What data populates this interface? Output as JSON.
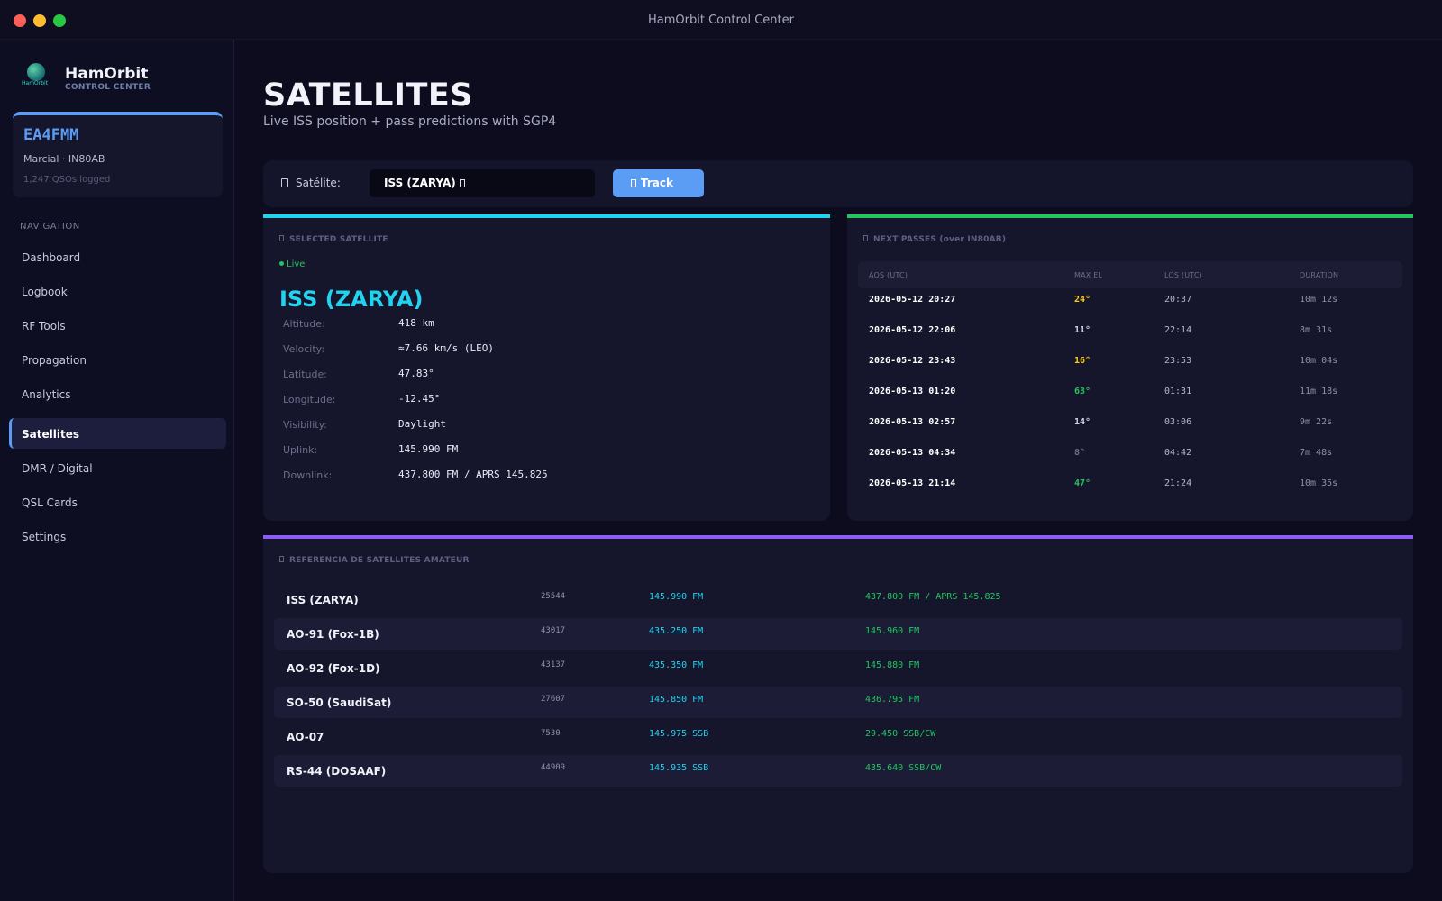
{
  "window": {
    "title": "HamOrbit Control Center"
  },
  "brand": {
    "name": "HamOrbit",
    "subtitle": "CONTROL CENTER",
    "logo_text": "HamOrbit"
  },
  "user": {
    "callsign": "EA4FMM",
    "name_locator": "Marcial · IN80AB",
    "qsos": "1,247 QSOs logged"
  },
  "nav": {
    "heading": "NAVIGATION",
    "items": [
      {
        "label": "Dashboard",
        "active": false
      },
      {
        "label": "Logbook",
        "active": false
      },
      {
        "label": "RF Tools",
        "active": false
      },
      {
        "label": "Propagation",
        "active": false
      },
      {
        "label": "Analytics",
        "active": false
      },
      {
        "label": "Satellites",
        "active": true
      },
      {
        "label": "DMR / Digital",
        "active": false
      },
      {
        "label": "QSL Cards",
        "active": false
      },
      {
        "label": "Settings",
        "active": false
      }
    ]
  },
  "page": {
    "title": "SATELLITES",
    "subtitle": "Live ISS position + pass predictions with SGP4"
  },
  "tracker": {
    "label": "Satélite:",
    "selected": "ISS (ZARYA)",
    "button": "Track"
  },
  "selected_satellite": {
    "heading": "SELECTED SATELLITE",
    "status": "Live",
    "name": "ISS (ZARYA)",
    "details": [
      {
        "label": "Altitude:",
        "value": "418 km"
      },
      {
        "label": "Velocity:",
        "value": "≈7.66 km/s (LEO)"
      },
      {
        "label": "Latitude:",
        "value": "47.83°"
      },
      {
        "label": "Longitude:",
        "value": "-12.45°"
      },
      {
        "label": "Visibility:",
        "value": "Daylight"
      },
      {
        "label": "Uplink:",
        "value": "145.990 FM"
      },
      {
        "label": "Downlink:",
        "value": "437.800 FM / APRS 145.825"
      }
    ]
  },
  "passes": {
    "heading": "NEXT PASSES (over IN80AB)",
    "columns": [
      "AOS (UTC)",
      "MAX EL",
      "LOS (UTC)",
      "DURATION"
    ],
    "rows": [
      {
        "aos": "2026-05-12 20:27",
        "max_el": "24°",
        "los": "20:37",
        "duration": "10m 12s",
        "el_color": "#facc15"
      },
      {
        "aos": "2026-05-12 22:06",
        "max_el": "11°",
        "los": "22:14",
        "duration": "8m 31s",
        "el_color": "#d2d4e4"
      },
      {
        "aos": "2026-05-12 23:43",
        "max_el": "16°",
        "los": "23:53",
        "duration": "10m 04s",
        "el_color": "#facc15"
      },
      {
        "aos": "2026-05-13 01:20",
        "max_el": "63°",
        "los": "01:31",
        "duration": "11m 18s",
        "el_color": "#22c55e"
      },
      {
        "aos": "2026-05-13 02:57",
        "max_el": "14°",
        "los": "03:06",
        "duration": "9m 22s",
        "el_color": "#d2d4e4"
      },
      {
        "aos": "2026-05-13 04:34",
        "max_el": "8°",
        "los": "04:42",
        "duration": "7m 48s",
        "el_color": "#6c6f8a"
      },
      {
        "aos": "2026-05-13 21:14",
        "max_el": "47°",
        "los": "21:24",
        "duration": "10m 35s",
        "el_color": "#22c55e"
      }
    ]
  },
  "reference": {
    "heading": "REFERENCIA DE SATELLITES AMATEUR",
    "rows": [
      {
        "name": "ISS (ZARYA)",
        "norad": "25544",
        "uplink": "145.990 FM",
        "downlink": "437.800 FM / APRS 145.825"
      },
      {
        "name": "AO-91 (Fox-1B)",
        "norad": "43017",
        "uplink": "435.250 FM",
        "downlink": "145.960 FM"
      },
      {
        "name": "AO-92 (Fox-1D)",
        "norad": "43137",
        "uplink": "435.350 FM",
        "downlink": "145.880 FM"
      },
      {
        "name": "SO-50 (SaudiSat)",
        "norad": "27607",
        "uplink": "145.850 FM",
        "downlink": "436.795 FM"
      },
      {
        "name": "AO-07",
        "norad": "7530",
        "uplink": "145.975 SSB",
        "downlink": "29.450 SSB/CW"
      },
      {
        "name": "RS-44 (DOSAAF)",
        "norad": "44909",
        "uplink": "145.935 SSB",
        "downlink": "435.640 SSB/CW"
      }
    ]
  },
  "colors": {
    "accent": "#5b9cf5",
    "cyan": "#22d3ee",
    "green": "#22c55e",
    "purple": "#8b5cf6",
    "yellow": "#facc15"
  }
}
